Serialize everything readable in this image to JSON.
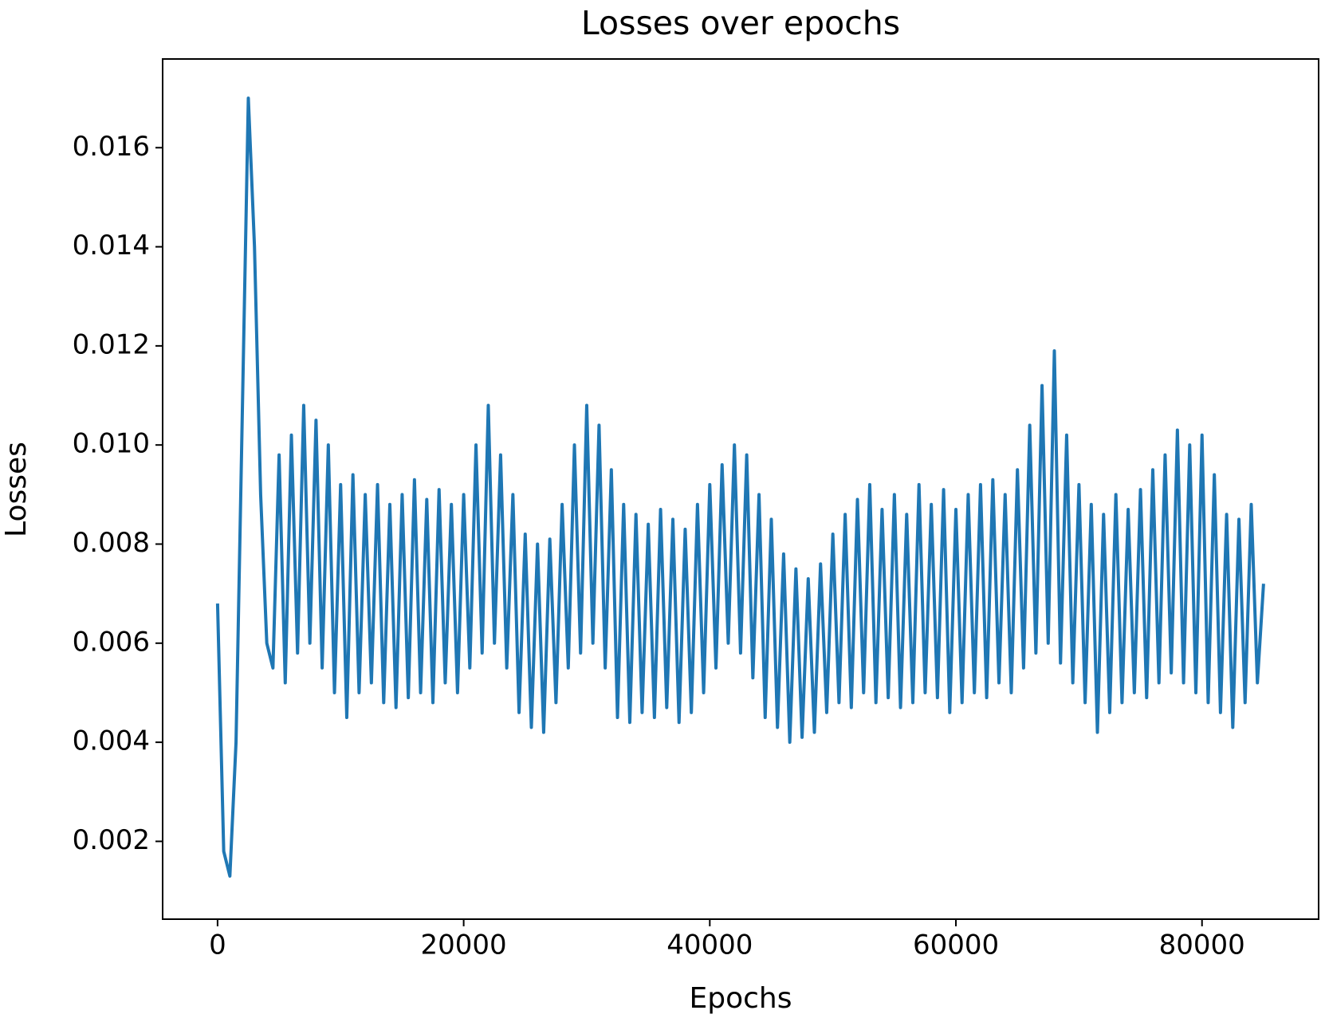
{
  "chart_data": {
    "type": "line",
    "title": "Losses over epochs",
    "x_label": "Epochs",
    "y_label": "Losses",
    "x": [
      0,
      500,
      1000,
      1500,
      2000,
      2500,
      3000,
      3500,
      4000,
      4500,
      5000,
      5500,
      6000,
      6500,
      7000,
      7500,
      8000,
      8500,
      9000,
      9500,
      10000,
      10500,
      11000,
      11500,
      12000,
      12500,
      13000,
      13500,
      14000,
      14500,
      15000,
      15500,
      16000,
      16500,
      17000,
      17500,
      18000,
      18500,
      19000,
      19500,
      20000,
      20500,
      21000,
      21500,
      22000,
      22500,
      23000,
      23500,
      24000,
      24500,
      25000,
      25500,
      26000,
      26500,
      27000,
      27500,
      28000,
      28500,
      29000,
      29500,
      30000,
      30500,
      31000,
      31500,
      32000,
      32500,
      33000,
      33500,
      34000,
      34500,
      35000,
      35500,
      36000,
      36500,
      37000,
      37500,
      38000,
      38500,
      39000,
      39500,
      40000,
      40500,
      41000,
      41500,
      42000,
      42500,
      43000,
      43500,
      44000,
      44500,
      45000,
      45500,
      46000,
      46500,
      47000,
      47500,
      48000,
      48500,
      49000,
      49500,
      50000,
      50500,
      51000,
      51500,
      52000,
      52500,
      53000,
      53500,
      54000,
      54500,
      55000,
      55500,
      56000,
      56500,
      57000,
      57500,
      58000,
      58500,
      59000,
      59500,
      60000,
      60500,
      61000,
      61500,
      62000,
      62500,
      63000,
      63500,
      64000,
      64500,
      65000,
      65500,
      66000,
      66500,
      67000,
      67500,
      68000,
      68500,
      69000,
      69500,
      70000,
      70500,
      71000,
      71500,
      72000,
      72500,
      73000,
      73500,
      74000,
      74500,
      75000,
      75500,
      76000,
      76500,
      77000,
      77500,
      78000,
      78500,
      79000,
      79500,
      80000,
      80500,
      81000,
      81500,
      82000,
      82500,
      83000,
      83500,
      84000,
      84500,
      85000
    ],
    "series": [
      {
        "name": "Losses",
        "color": "#1f77b4",
        "values": [
          0.0068,
          0.0018,
          0.0013,
          0.004,
          0.0105,
          0.017,
          0.014,
          0.009,
          0.006,
          0.0055,
          0.0098,
          0.0052,
          0.0102,
          0.0058,
          0.0108,
          0.006,
          0.0105,
          0.0055,
          0.01,
          0.005,
          0.0092,
          0.0045,
          0.0094,
          0.005,
          0.009,
          0.0052,
          0.0092,
          0.0048,
          0.0088,
          0.0047,
          0.009,
          0.0049,
          0.0093,
          0.005,
          0.0089,
          0.0048,
          0.0091,
          0.0052,
          0.0088,
          0.005,
          0.009,
          0.0055,
          0.01,
          0.0058,
          0.0108,
          0.006,
          0.0098,
          0.0055,
          0.009,
          0.0046,
          0.0082,
          0.0043,
          0.008,
          0.0042,
          0.0081,
          0.0048,
          0.0088,
          0.0055,
          0.01,
          0.0058,
          0.0108,
          0.006,
          0.0104,
          0.0055,
          0.0095,
          0.0045,
          0.0088,
          0.0044,
          0.0086,
          0.0046,
          0.0084,
          0.0045,
          0.0087,
          0.0047,
          0.0085,
          0.0044,
          0.0083,
          0.0046,
          0.0088,
          0.005,
          0.0092,
          0.0055,
          0.0096,
          0.006,
          0.01,
          0.0058,
          0.0098,
          0.0053,
          0.009,
          0.0045,
          0.0085,
          0.0043,
          0.0078,
          0.004,
          0.0075,
          0.0041,
          0.0073,
          0.0042,
          0.0076,
          0.0046,
          0.0082,
          0.0048,
          0.0086,
          0.0047,
          0.0089,
          0.005,
          0.0092,
          0.0048,
          0.0087,
          0.0049,
          0.009,
          0.0047,
          0.0086,
          0.0048,
          0.0092,
          0.005,
          0.0088,
          0.0049,
          0.0091,
          0.0046,
          0.0087,
          0.0048,
          0.009,
          0.005,
          0.0092,
          0.0049,
          0.0093,
          0.0052,
          0.009,
          0.005,
          0.0095,
          0.0055,
          0.0104,
          0.0058,
          0.0112,
          0.006,
          0.0119,
          0.0056,
          0.0102,
          0.0052,
          0.0092,
          0.0048,
          0.0088,
          0.0042,
          0.0086,
          0.0046,
          0.009,
          0.0048,
          0.0087,
          0.005,
          0.0091,
          0.0049,
          0.0095,
          0.0052,
          0.0098,
          0.0054,
          0.0103,
          0.0052,
          0.01,
          0.005,
          0.0102,
          0.0048,
          0.0094,
          0.0046,
          0.0086,
          0.0043,
          0.0085,
          0.0048,
          0.0088,
          0.0052,
          0.0072
        ]
      }
    ],
    "xlim": [
      -4464,
      89476
    ],
    "ylim": [
      0.00043,
      0.01779
    ],
    "xticks": [
      0,
      20000,
      40000,
      60000,
      80000
    ],
    "yticks": [
      0.002,
      0.004,
      0.006,
      0.008,
      {
        "value": 0.01,
        "label": "0.010"
      },
      0.012,
      0.014,
      0.016
    ],
    "grid": false
  }
}
